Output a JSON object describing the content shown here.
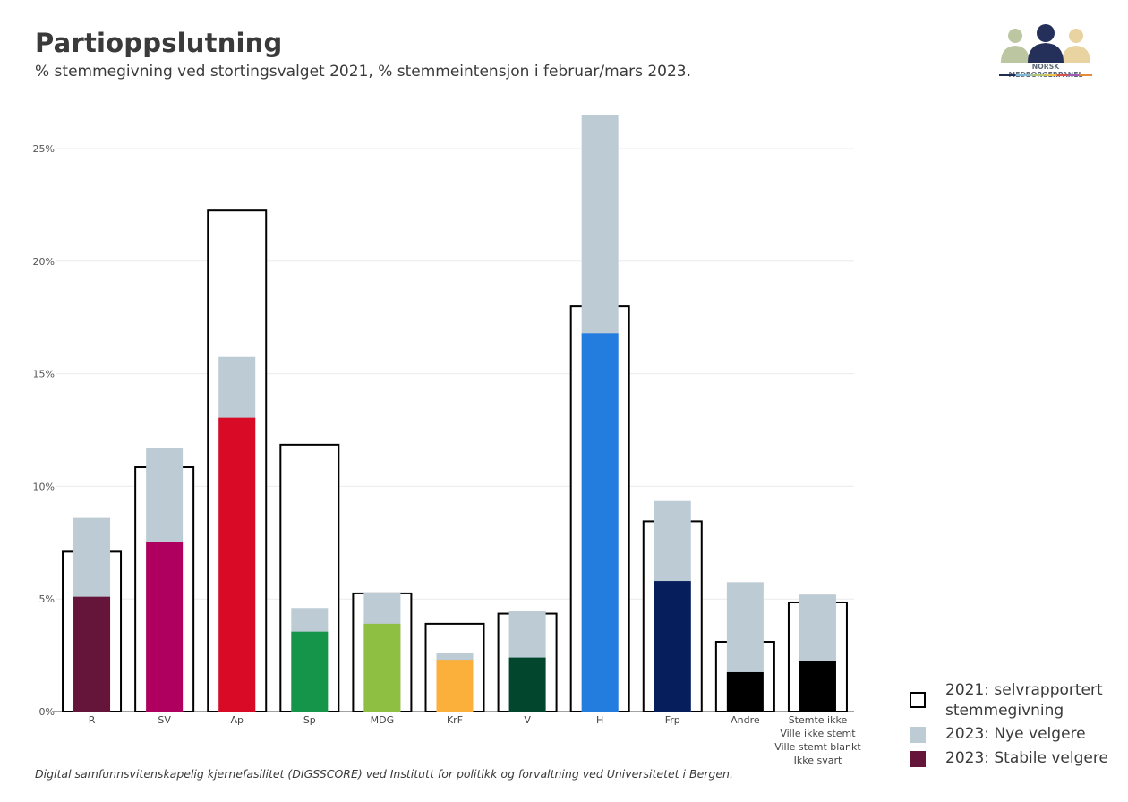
{
  "header": {
    "title": "Partioppslutning",
    "subtitle": "% stemmegivning ved stortingsvalget 2021, % stemmeintensjon i februar/mars 2023."
  },
  "logo": {
    "text": "NORSK MEDBORGERPANEL",
    "icon": "three-people-icon"
  },
  "footer": {
    "text": "Digital samfunnsvitenskapelig kjernefasilitet (DIGSSCORE) ved Institutt for politikk og forvaltning ved Universitetet i Bergen."
  },
  "colors": {
    "outline": "#000000",
    "new_voters": "#bccbd4",
    "gridline": "#ebebeb"
  },
  "chart_data": {
    "type": "bar",
    "title": "Partioppslutning",
    "subtitle": "% stemmegivning ved stortingsvalget 2021, % stemmeintensjon i februar/mars 2023.",
    "xlabel": "",
    "ylabel": "",
    "ylim": [
      0,
      27
    ],
    "yticks": [
      0,
      5,
      10,
      15,
      20,
      25
    ],
    "ytick_labels": [
      "0%",
      "5%",
      "10%",
      "15%",
      "20%",
      "25%"
    ],
    "grid": true,
    "legend_position": "bottom-right",
    "categories": [
      [
        "R"
      ],
      [
        "SV"
      ],
      [
        "Ap"
      ],
      [
        "Sp"
      ],
      [
        "MDG"
      ],
      [
        "KrF"
      ],
      [
        "V"
      ],
      [
        "H"
      ],
      [
        "Frp"
      ],
      [
        "Andre"
      ],
      [
        "Stemte ikke",
        "Ville ikke stemt",
        "Ville stemt blankt",
        "Ikke svart"
      ]
    ],
    "party_colors": [
      "#65143a",
      "#b0005f",
      "#d80a26",
      "#15954a",
      "#8ebe42",
      "#fbb03b",
      "#01462d",
      "#237ddf",
      "#061f5c",
      "#000000",
      "#000000"
    ],
    "series": [
      {
        "name": "2021: selvrapportert stemmegivning",
        "style": "outline",
        "values": [
          7.1,
          10.85,
          22.25,
          11.85,
          5.25,
          3.9,
          4.35,
          18.0,
          8.45,
          3.1,
          4.85
        ]
      },
      {
        "name": "2023: Nye velgere",
        "style": "stacked-top",
        "color": "#bccbd4",
        "total_values": [
          8.6,
          11.7,
          15.75,
          4.6,
          5.25,
          2.6,
          4.45,
          26.5,
          9.35,
          5.75,
          5.2
        ],
        "values": [
          3.5,
          4.15,
          2.7,
          1.05,
          1.35,
          0.3,
          2.05,
          9.7,
          3.55,
          4.0,
          2.95
        ]
      },
      {
        "name": "2023: Stabile velgere",
        "style": "stacked-base",
        "color": "party_colors",
        "values": [
          5.1,
          7.55,
          13.05,
          3.55,
          3.9,
          2.3,
          2.4,
          16.8,
          5.8,
          1.75,
          2.25
        ]
      }
    ]
  },
  "legend": {
    "items": [
      {
        "label_line1": "2021: selvrapportert",
        "label_line2": "stemmegivning",
        "swatch": "outline"
      },
      {
        "label_line1": "2023: Nye velgere",
        "swatch": "#bccbd4"
      },
      {
        "label_line1": "2023: Stabile velgere",
        "swatch": "#65143a"
      }
    ]
  }
}
